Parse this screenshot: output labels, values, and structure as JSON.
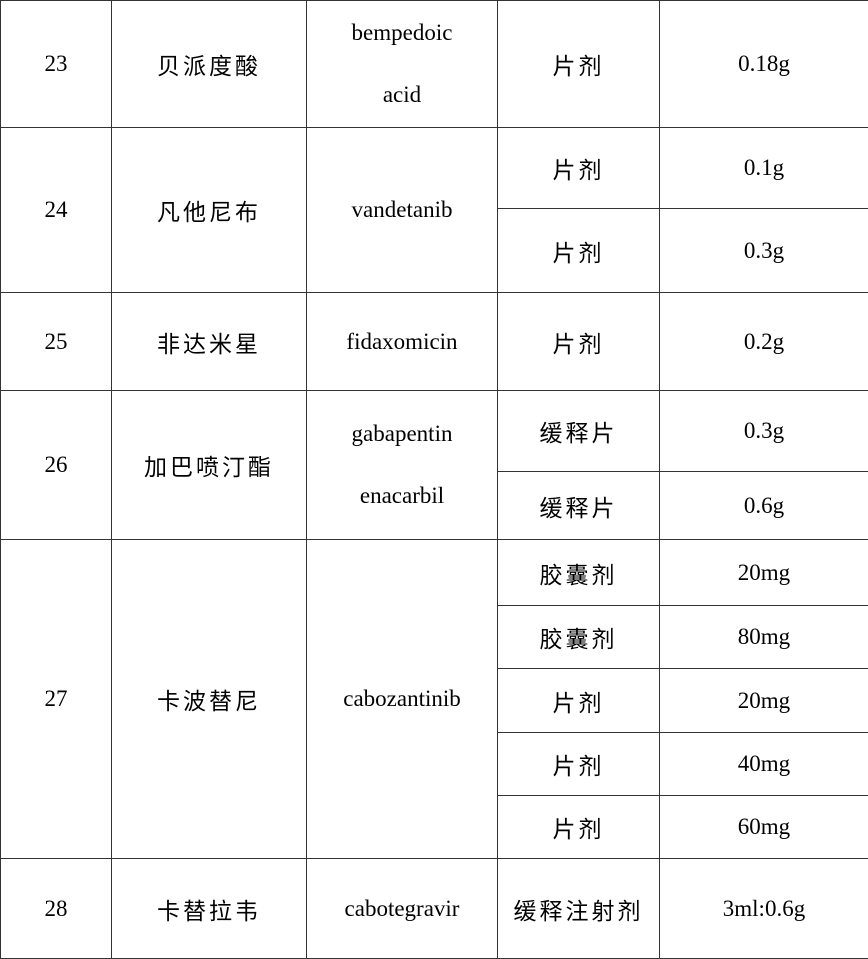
{
  "rows": [
    {
      "no": "23",
      "cn": "贝派度酸",
      "en": [
        "bempedoic",
        "acid"
      ],
      "specs": [
        {
          "form": "片剂",
          "dose": "0.18g"
        }
      ]
    },
    {
      "no": "24",
      "cn": "凡他尼布",
      "en": [
        "vandetanib"
      ],
      "specs": [
        {
          "form": "片剂",
          "dose": "0.1g"
        },
        {
          "form": "片剂",
          "dose": "0.3g"
        }
      ]
    },
    {
      "no": "25",
      "cn": "非达米星",
      "en": [
        "fidaxomicin"
      ],
      "specs": [
        {
          "form": "片剂",
          "dose": "0.2g"
        }
      ]
    },
    {
      "no": "26",
      "cn": "加巴喷汀酯",
      "en": [
        "gabapentin",
        "enacarbil"
      ],
      "specs": [
        {
          "form": "缓释片",
          "dose": "0.3g"
        },
        {
          "form": "缓释片",
          "dose": "0.6g"
        }
      ]
    },
    {
      "no": "27",
      "cn": "卡波替尼",
      "en": [
        "cabozantinib"
      ],
      "specs": [
        {
          "form": "胶囊剂",
          "dose": "20mg"
        },
        {
          "form": "胶囊剂",
          "dose": "80mg"
        },
        {
          "form": "片剂",
          "dose": "20mg"
        },
        {
          "form": "片剂",
          "dose": "40mg"
        },
        {
          "form": "片剂",
          "dose": "60mg"
        }
      ]
    },
    {
      "no": "28",
      "cn": "卡替拉韦",
      "en": [
        "cabotegravir"
      ],
      "specs": [
        {
          "form": "缓释注射剂",
          "dose": "3ml:0.6g"
        }
      ]
    }
  ]
}
